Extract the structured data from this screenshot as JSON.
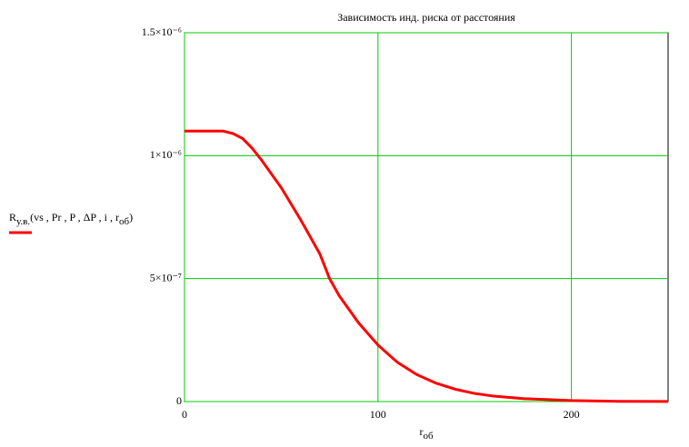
{
  "chart_data": {
    "type": "line",
    "title": "Зависимость инд. риска от расстояния",
    "xlabel": [
      "r",
      "об"
    ],
    "ylabel": [
      "R",
      "у.в.",
      "(vs , Pr , P , ΔP , i , r",
      "об",
      ")"
    ],
    "x": [
      0,
      10,
      20,
      25,
      30,
      35,
      40,
      50,
      60,
      70,
      75,
      80,
      90,
      100,
      110,
      120,
      130,
      140,
      150,
      160,
      175,
      200,
      225,
      250
    ],
    "series": [
      {
        "color": "#ff0000",
        "values": [
          1.1e-06,
          1.1e-06,
          1.1e-06,
          1.09e-06,
          1.07e-06,
          1.03e-06,
          9.8e-07,
          8.7e-07,
          7.4e-07,
          6e-07,
          5e-07,
          4.3e-07,
          3.2e-07,
          2.3e-07,
          1.6e-07,
          1.1e-07,
          7.5e-08,
          5e-08,
          3.3e-08,
          2.2e-08,
          1.2e-08,
          4e-09,
          1e-09,
          3e-10
        ]
      }
    ],
    "xlim": [
      0,
      250
    ],
    "xticks": [
      0,
      100,
      200
    ],
    "ylim": [
      0,
      1.5e-06
    ],
    "yticks": [
      0,
      {
        "value": 5e-07,
        "label": "5×10⁻⁷"
      },
      {
        "value": 1e-06,
        "label": "1×10⁻⁶"
      },
      {
        "value": 1.5e-06,
        "label": "1.5×10⁻⁶"
      }
    ],
    "grid": true,
    "grid_color": "#00cc00"
  }
}
